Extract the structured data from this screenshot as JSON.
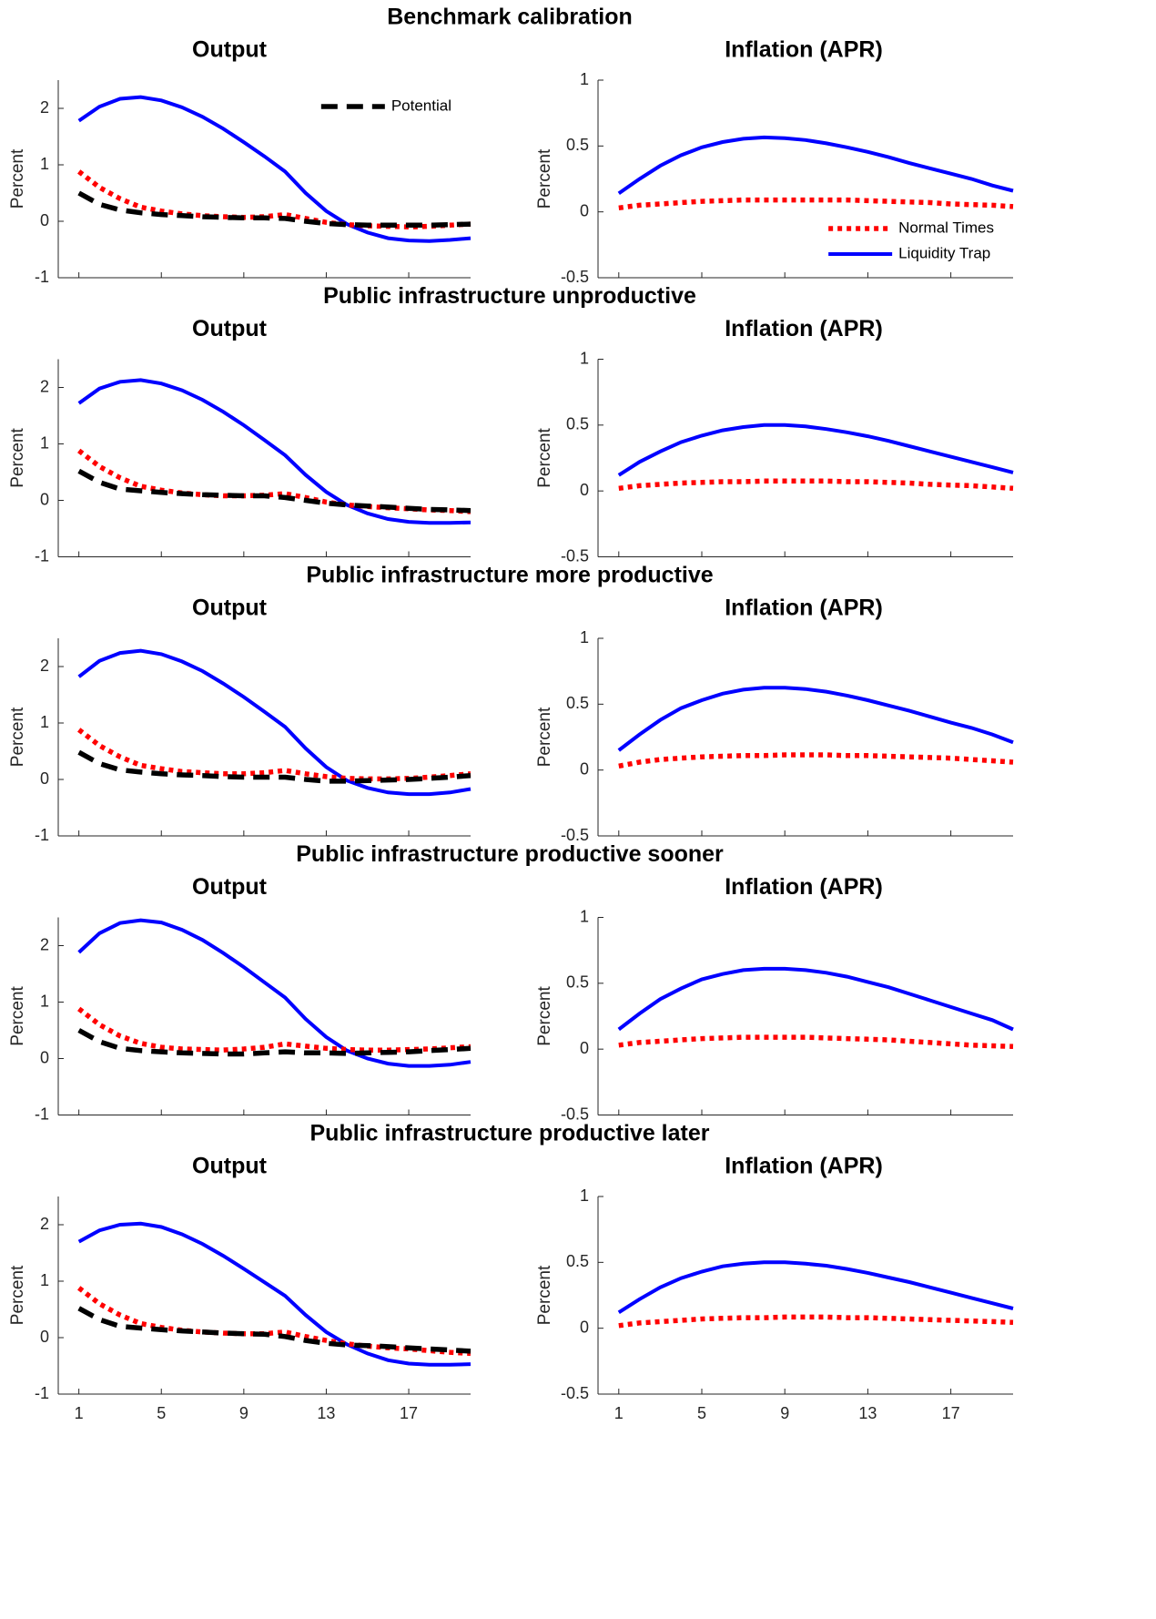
{
  "row_titles": [
    "Benchmark calibration",
    "Public infrastructure unproductive",
    "Public infrastructure more productive",
    "Public infrastructure productive sooner",
    "Public infrastructure productive later"
  ],
  "chart_data": [
    {
      "type": "line",
      "title": "Output",
      "ylabel": "Percent",
      "x": [
        1,
        2,
        3,
        4,
        5,
        6,
        7,
        8,
        9,
        10,
        11,
        12,
        13,
        14,
        15,
        16,
        17,
        18,
        19,
        20
      ],
      "xlim": [
        0,
        20
      ],
      "xticks": [
        1,
        5,
        9,
        13,
        17
      ],
      "xtick_labels": false,
      "ylim": [
        -1,
        2.5
      ],
      "yticks": [
        -1,
        0,
        1,
        2
      ],
      "legend": "upper right",
      "series": [
        {
          "color": "#0000ff",
          "dash": "solid",
          "values": [
            1.78,
            2.03,
            2.17,
            2.2,
            2.14,
            2.02,
            1.85,
            1.64,
            1.4,
            1.15,
            0.88,
            0.5,
            0.18,
            -0.05,
            -0.2,
            -0.3,
            -0.34,
            -0.35,
            -0.33,
            -0.3
          ]
        },
        {
          "color": "#ff0000",
          "dash": "dotted",
          "values": [
            0.88,
            0.6,
            0.4,
            0.25,
            0.18,
            0.13,
            0.1,
            0.08,
            0.07,
            0.08,
            0.12,
            0.05,
            -0.02,
            -0.06,
            -0.08,
            -0.09,
            -0.1,
            -0.09,
            -0.07,
            -0.05
          ]
        },
        {
          "name": "Potential",
          "color": "#000000",
          "dash": "dashed",
          "values": [
            0.5,
            0.3,
            0.2,
            0.15,
            0.12,
            0.1,
            0.08,
            0.07,
            0.06,
            0.06,
            0.05,
            0.0,
            -0.04,
            -0.06,
            -0.07,
            -0.07,
            -0.07,
            -0.07,
            -0.06,
            -0.05
          ]
        }
      ]
    },
    {
      "type": "line",
      "title": "Inflation (APR)",
      "ylabel": "Percent",
      "x": [
        1,
        2,
        3,
        4,
        5,
        6,
        7,
        8,
        9,
        10,
        11,
        12,
        13,
        14,
        15,
        16,
        17,
        18,
        19,
        20
      ],
      "xlim": [
        0,
        20
      ],
      "xticks": [
        1,
        5,
        9,
        13,
        17
      ],
      "xtick_labels": false,
      "ylim": [
        -0.5,
        1
      ],
      "yticks": [
        -0.5,
        0,
        0.5,
        1
      ],
      "legend": "lower right",
      "series": [
        {
          "name": "Normal Times",
          "color": "#ff0000",
          "dash": "dotted",
          "values": [
            0.03,
            0.05,
            0.06,
            0.07,
            0.08,
            0.085,
            0.09,
            0.09,
            0.09,
            0.09,
            0.09,
            0.09,
            0.085,
            0.08,
            0.075,
            0.07,
            0.06,
            0.055,
            0.05,
            0.04
          ]
        },
        {
          "name": "Liquidity Trap",
          "color": "#0000ff",
          "dash": "solid",
          "values": [
            0.14,
            0.25,
            0.35,
            0.43,
            0.49,
            0.53,
            0.555,
            0.565,
            0.56,
            0.545,
            0.52,
            0.49,
            0.455,
            0.415,
            0.37,
            0.33,
            0.29,
            0.25,
            0.2,
            0.16
          ]
        }
      ]
    },
    {
      "type": "line",
      "title": "Output",
      "ylabel": "Percent",
      "x": [
        1,
        2,
        3,
        4,
        5,
        6,
        7,
        8,
        9,
        10,
        11,
        12,
        13,
        14,
        15,
        16,
        17,
        18,
        19,
        20
      ],
      "xlim": [
        0,
        20
      ],
      "xticks": [
        1,
        5,
        9,
        13,
        17
      ],
      "xtick_labels": false,
      "ylim": [
        -1,
        2.5
      ],
      "yticks": [
        -1,
        0,
        1,
        2
      ],
      "series": [
        {
          "color": "#0000ff",
          "dash": "solid",
          "values": [
            1.72,
            1.98,
            2.1,
            2.13,
            2.07,
            1.95,
            1.78,
            1.57,
            1.33,
            1.07,
            0.8,
            0.45,
            0.15,
            -0.08,
            -0.23,
            -0.33,
            -0.38,
            -0.4,
            -0.4,
            -0.39
          ]
        },
        {
          "color": "#ff0000",
          "dash": "dotted",
          "values": [
            0.88,
            0.6,
            0.4,
            0.25,
            0.18,
            0.13,
            0.1,
            0.08,
            0.08,
            0.09,
            0.12,
            0.05,
            -0.03,
            -0.08,
            -0.11,
            -0.13,
            -0.15,
            -0.17,
            -0.18,
            -0.2
          ]
        },
        {
          "color": "#000000",
          "dash": "dashed",
          "values": [
            0.52,
            0.32,
            0.2,
            0.17,
            0.14,
            0.12,
            0.1,
            0.09,
            0.08,
            0.08,
            0.05,
            0.0,
            -0.05,
            -0.08,
            -0.1,
            -0.12,
            -0.14,
            -0.16,
            -0.17,
            -0.18
          ]
        }
      ]
    },
    {
      "type": "line",
      "title": "Inflation (APR)",
      "ylabel": "Percent",
      "x": [
        1,
        2,
        3,
        4,
        5,
        6,
        7,
        8,
        9,
        10,
        11,
        12,
        13,
        14,
        15,
        16,
        17,
        18,
        19,
        20
      ],
      "xlim": [
        0,
        20
      ],
      "xticks": [
        1,
        5,
        9,
        13,
        17
      ],
      "xtick_labels": false,
      "ylim": [
        -0.5,
        1
      ],
      "yticks": [
        -0.5,
        0,
        0.5,
        1
      ],
      "series": [
        {
          "color": "#ff0000",
          "dash": "dotted",
          "values": [
            0.02,
            0.04,
            0.05,
            0.06,
            0.065,
            0.07,
            0.07,
            0.075,
            0.075,
            0.075,
            0.075,
            0.07,
            0.07,
            0.065,
            0.06,
            0.05,
            0.045,
            0.04,
            0.03,
            0.02
          ]
        },
        {
          "color": "#0000ff",
          "dash": "solid",
          "values": [
            0.12,
            0.22,
            0.3,
            0.37,
            0.42,
            0.46,
            0.485,
            0.5,
            0.5,
            0.49,
            0.47,
            0.445,
            0.415,
            0.38,
            0.34,
            0.3,
            0.26,
            0.22,
            0.18,
            0.14
          ]
        }
      ]
    },
    {
      "type": "line",
      "title": "Output",
      "ylabel": "Percent",
      "x": [
        1,
        2,
        3,
        4,
        5,
        6,
        7,
        8,
        9,
        10,
        11,
        12,
        13,
        14,
        15,
        16,
        17,
        18,
        19,
        20
      ],
      "xlim": [
        0,
        20
      ],
      "xticks": [
        1,
        5,
        9,
        13,
        17
      ],
      "xtick_labels": false,
      "ylim": [
        -1,
        2.5
      ],
      "yticks": [
        -1,
        0,
        1,
        2
      ],
      "series": [
        {
          "color": "#0000ff",
          "dash": "solid",
          "values": [
            1.82,
            2.1,
            2.24,
            2.28,
            2.22,
            2.09,
            1.92,
            1.7,
            1.46,
            1.2,
            0.93,
            0.55,
            0.22,
            -0.02,
            -0.15,
            -0.23,
            -0.26,
            -0.26,
            -0.23,
            -0.17
          ]
        },
        {
          "color": "#ff0000",
          "dash": "dotted",
          "values": [
            0.88,
            0.6,
            0.4,
            0.25,
            0.19,
            0.14,
            0.12,
            0.1,
            0.1,
            0.12,
            0.16,
            0.1,
            0.05,
            0.02,
            0.01,
            0.01,
            0.02,
            0.04,
            0.07,
            0.1
          ]
        },
        {
          "color": "#000000",
          "dash": "dashed",
          "values": [
            0.48,
            0.28,
            0.17,
            0.13,
            0.1,
            0.08,
            0.07,
            0.05,
            0.04,
            0.04,
            0.04,
            0.0,
            -0.03,
            -0.03,
            -0.02,
            -0.01,
            0.0,
            0.02,
            0.04,
            0.07
          ]
        }
      ]
    },
    {
      "type": "line",
      "title": "Inflation (APR)",
      "ylabel": "Percent",
      "x": [
        1,
        2,
        3,
        4,
        5,
        6,
        7,
        8,
        9,
        10,
        11,
        12,
        13,
        14,
        15,
        16,
        17,
        18,
        19,
        20
      ],
      "xlim": [
        0,
        20
      ],
      "xticks": [
        1,
        5,
        9,
        13,
        17
      ],
      "xtick_labels": false,
      "ylim": [
        -0.5,
        1
      ],
      "yticks": [
        -0.5,
        0,
        0.5,
        1
      ],
      "series": [
        {
          "color": "#ff0000",
          "dash": "dotted",
          "values": [
            0.03,
            0.06,
            0.08,
            0.09,
            0.1,
            0.105,
            0.11,
            0.11,
            0.115,
            0.115,
            0.115,
            0.11,
            0.11,
            0.105,
            0.1,
            0.095,
            0.09,
            0.08,
            0.07,
            0.06
          ]
        },
        {
          "color": "#0000ff",
          "dash": "solid",
          "values": [
            0.15,
            0.27,
            0.38,
            0.47,
            0.53,
            0.58,
            0.61,
            0.625,
            0.625,
            0.615,
            0.595,
            0.565,
            0.53,
            0.49,
            0.45,
            0.405,
            0.36,
            0.32,
            0.27,
            0.21
          ]
        }
      ]
    },
    {
      "type": "line",
      "title": "Output",
      "ylabel": "Percent",
      "x": [
        1,
        2,
        3,
        4,
        5,
        6,
        7,
        8,
        9,
        10,
        11,
        12,
        13,
        14,
        15,
        16,
        17,
        18,
        19,
        20
      ],
      "xlim": [
        0,
        20
      ],
      "xticks": [
        1,
        5,
        9,
        13,
        17
      ],
      "xtick_labels": false,
      "ylim": [
        -1,
        2.5
      ],
      "yticks": [
        -1,
        0,
        1,
        2
      ],
      "series": [
        {
          "color": "#0000ff",
          "dash": "solid",
          "values": [
            1.88,
            2.22,
            2.4,
            2.45,
            2.41,
            2.28,
            2.1,
            1.87,
            1.62,
            1.35,
            1.08,
            0.7,
            0.38,
            0.14,
            0.0,
            -0.09,
            -0.13,
            -0.13,
            -0.11,
            -0.06
          ]
        },
        {
          "color": "#ff0000",
          "dash": "dotted",
          "values": [
            0.88,
            0.6,
            0.4,
            0.27,
            0.2,
            0.17,
            0.16,
            0.15,
            0.17,
            0.2,
            0.26,
            0.22,
            0.18,
            0.16,
            0.15,
            0.15,
            0.16,
            0.17,
            0.19,
            0.21
          ]
        },
        {
          "color": "#000000",
          "dash": "dashed",
          "values": [
            0.5,
            0.3,
            0.18,
            0.14,
            0.12,
            0.1,
            0.09,
            0.08,
            0.08,
            0.1,
            0.12,
            0.1,
            0.1,
            0.09,
            0.1,
            0.11,
            0.12,
            0.14,
            0.16,
            0.18
          ]
        }
      ]
    },
    {
      "type": "line",
      "title": "Inflation (APR)",
      "ylabel": "Percent",
      "x": [
        1,
        2,
        3,
        4,
        5,
        6,
        7,
        8,
        9,
        10,
        11,
        12,
        13,
        14,
        15,
        16,
        17,
        18,
        19,
        20
      ],
      "xlim": [
        0,
        20
      ],
      "xticks": [
        1,
        5,
        9,
        13,
        17
      ],
      "xtick_labels": false,
      "ylim": [
        -0.5,
        1
      ],
      "yticks": [
        -0.5,
        0,
        0.5,
        1
      ],
      "series": [
        {
          "color": "#ff0000",
          "dash": "dotted",
          "values": [
            0.03,
            0.05,
            0.06,
            0.07,
            0.08,
            0.085,
            0.09,
            0.09,
            0.09,
            0.09,
            0.085,
            0.08,
            0.075,
            0.07,
            0.06,
            0.05,
            0.04,
            0.03,
            0.025,
            0.02
          ]
        },
        {
          "color": "#0000ff",
          "dash": "solid",
          "values": [
            0.15,
            0.27,
            0.38,
            0.46,
            0.53,
            0.57,
            0.6,
            0.61,
            0.61,
            0.6,
            0.58,
            0.55,
            0.51,
            0.47,
            0.42,
            0.37,
            0.32,
            0.27,
            0.22,
            0.15
          ]
        }
      ]
    },
    {
      "type": "line",
      "title": "Output",
      "ylabel": "Percent",
      "x": [
        1,
        2,
        3,
        4,
        5,
        6,
        7,
        8,
        9,
        10,
        11,
        12,
        13,
        14,
        15,
        16,
        17,
        18,
        19,
        20
      ],
      "xlim": [
        0,
        20
      ],
      "xticks": [
        1,
        5,
        9,
        13,
        17
      ],
      "xtick_labels": true,
      "ylim": [
        -1,
        2.5
      ],
      "yticks": [
        -1,
        0,
        1,
        2
      ],
      "series": [
        {
          "color": "#0000ff",
          "dash": "solid",
          "values": [
            1.7,
            1.9,
            2.0,
            2.02,
            1.96,
            1.83,
            1.66,
            1.45,
            1.22,
            0.98,
            0.74,
            0.4,
            0.1,
            -0.12,
            -0.28,
            -0.4,
            -0.46,
            -0.48,
            -0.48,
            -0.47
          ]
        },
        {
          "color": "#ff0000",
          "dash": "dotted",
          "values": [
            0.88,
            0.6,
            0.4,
            0.25,
            0.18,
            0.13,
            0.1,
            0.08,
            0.07,
            0.07,
            0.1,
            0.02,
            -0.05,
            -0.11,
            -0.15,
            -0.18,
            -0.2,
            -0.23,
            -0.26,
            -0.28
          ]
        },
        {
          "color": "#000000",
          "dash": "dashed",
          "values": [
            0.52,
            0.32,
            0.2,
            0.17,
            0.14,
            0.12,
            0.1,
            0.08,
            0.07,
            0.06,
            0.02,
            -0.05,
            -0.1,
            -0.13,
            -0.14,
            -0.16,
            -0.18,
            -0.2,
            -0.22,
            -0.24
          ]
        }
      ]
    },
    {
      "type": "line",
      "title": "Inflation (APR)",
      "ylabel": "Percent",
      "x": [
        1,
        2,
        3,
        4,
        5,
        6,
        7,
        8,
        9,
        10,
        11,
        12,
        13,
        14,
        15,
        16,
        17,
        18,
        19,
        20
      ],
      "xlim": [
        0,
        20
      ],
      "xticks": [
        1,
        5,
        9,
        13,
        17
      ],
      "xtick_labels": true,
      "ylim": [
        -0.5,
        1
      ],
      "yticks": [
        -0.5,
        0,
        0.5,
        1
      ],
      "series": [
        {
          "color": "#ff0000",
          "dash": "dotted",
          "values": [
            0.02,
            0.04,
            0.05,
            0.06,
            0.07,
            0.075,
            0.08,
            0.08,
            0.085,
            0.085,
            0.085,
            0.08,
            0.08,
            0.075,
            0.07,
            0.065,
            0.06,
            0.055,
            0.05,
            0.045
          ]
        },
        {
          "color": "#0000ff",
          "dash": "solid",
          "values": [
            0.12,
            0.22,
            0.31,
            0.38,
            0.43,
            0.47,
            0.49,
            0.5,
            0.5,
            0.49,
            0.475,
            0.45,
            0.42,
            0.385,
            0.35,
            0.31,
            0.27,
            0.23,
            0.19,
            0.15
          ]
        }
      ]
    }
  ]
}
